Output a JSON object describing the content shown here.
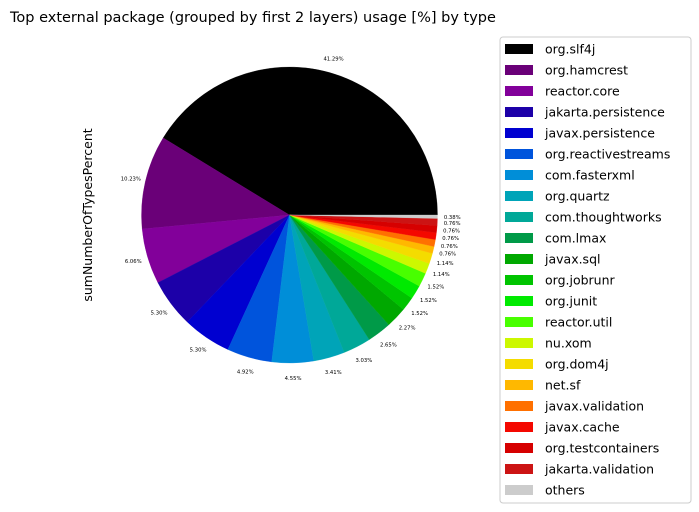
{
  "chart_data": {
    "type": "pie",
    "title": "Top external package (grouped by first 2 layers) usage [%] by type",
    "ylabel": "sumNumberOfTypesPercent",
    "legend_position": "right",
    "slices": [
      {
        "label": "org.slf4j",
        "value": 41.29,
        "value_label": "41.29%",
        "color": "#000000"
      },
      {
        "label": "org.hamcrest",
        "value": 10.23,
        "value_label": "10.23%",
        "color": "#6a0078"
      },
      {
        "label": "reactor.core",
        "value": 6.06,
        "value_label": "6.06%",
        "color": "#82009a"
      },
      {
        "label": "jakarta.persistence",
        "value": 5.3,
        "value_label": "5.30%",
        "color": "#1c00a8"
      },
      {
        "label": "javax.persistence",
        "value": 5.3,
        "value_label": "5.30%",
        "color": "#0000d0"
      },
      {
        "label": "org.reactivestreams",
        "value": 4.92,
        "value_label": "4.92%",
        "color": "#0054dc"
      },
      {
        "label": "com.fasterxml",
        "value": 4.55,
        "value_label": "4.55%",
        "color": "#008ed8"
      },
      {
        "label": "org.quartz",
        "value": 3.41,
        "value_label": "3.41%",
        "color": "#00a4b8"
      },
      {
        "label": "com.thoughtworks",
        "value": 3.03,
        "value_label": "3.03%",
        "color": "#00a898"
      },
      {
        "label": "com.lmax",
        "value": 2.65,
        "value_label": "2.65%",
        "color": "#009a48"
      },
      {
        "label": "javax.sql",
        "value": 2.27,
        "value_label": "2.27%",
        "color": "#00a800"
      },
      {
        "label": "org.jobrunr",
        "value": 1.52,
        "value_label": "1.52%",
        "color": "#00c400"
      },
      {
        "label": "org.junit",
        "value": 1.52,
        "value_label": "1.52%",
        "color": "#00ea00"
      },
      {
        "label": "reactor.util",
        "value": 1.52,
        "value_label": "1.52%",
        "color": "#48ff00"
      },
      {
        "label": "nu.xom",
        "value": 1.14,
        "value_label": "1.14%",
        "color": "#ccf800"
      },
      {
        "label": "org.dom4j",
        "value": 1.14,
        "value_label": "1.14%",
        "color": "#f4dc00"
      },
      {
        "label": "net.sf",
        "value": 0.76,
        "value_label": "0.76%",
        "color": "#ffb800"
      },
      {
        "label": "javax.validation",
        "value": 0.76,
        "value_label": "0.76%",
        "color": "#ff7000"
      },
      {
        "label": "javax.cache",
        "value": 0.76,
        "value_label": "0.76%",
        "color": "#f40800"
      },
      {
        "label": "org.testcontainers",
        "value": 0.76,
        "value_label": "0.76%",
        "color": "#d60000"
      },
      {
        "label": "jakarta.validation",
        "value": 0.76,
        "value_label": "0.76%",
        "color": "#cc1414"
      },
      {
        "label": "others",
        "value": 0.38,
        "value_label": "0.38%",
        "color": "#cccccc"
      }
    ]
  }
}
